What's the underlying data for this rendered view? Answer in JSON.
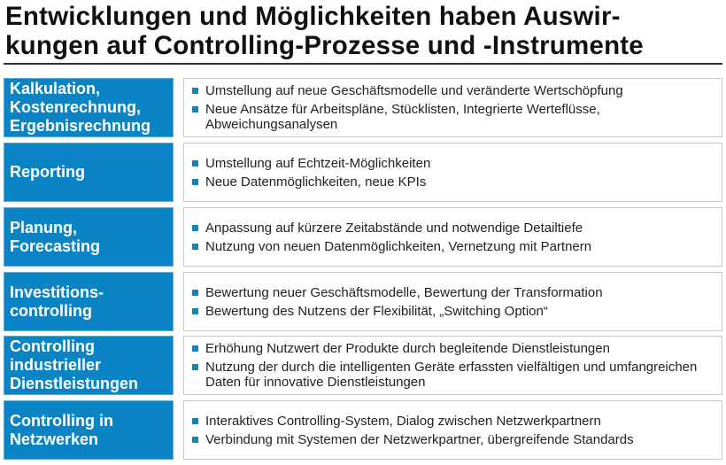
{
  "title": "Entwicklungen und Möglichkeiten haben Auswir-\nkungen auf Controlling-Prozesse und -Instrumente",
  "title_lines": [
    "Entwicklungen und Möglichkeiten haben Auswir-",
    "kungen auf Controlling-Prozesse und -Instrumente"
  ],
  "colors": {
    "accent": "#0a84c4"
  },
  "rows": [
    {
      "label": "Kalkulation, Kostenrechnung, Ergebnisrechnung",
      "bullets": [
        "Umstellung auf neue Geschäftsmodelle und veränderte Wertschöpfung",
        "Neue Ansätze für Arbeitspläne, Stücklisten, Integrierte Werteflüsse, Abweichungsanalysen"
      ]
    },
    {
      "label": "Reporting",
      "bullets": [
        "Umstellung auf Echtzeit-Möglichkeiten",
        "Neue Datenmöglichkeiten, neue KPIs"
      ]
    },
    {
      "label": "Planung, Forecasting",
      "bullets": [
        "Anpassung auf kürzere Zeitabstände und notwendige Detailtiefe",
        "Nutzung von neuen Datenmöglichkeiten, Vernetzung mit Partnern"
      ]
    },
    {
      "label": "Investitions-controlling",
      "bullets": [
        "Bewertung neuer Geschäftsmodelle, Bewertung der Transformation",
        "Bewertung des Nutzens der Flexibilität, „Switching Option“"
      ]
    },
    {
      "label": "Controlling industrieller Dienstleistungen",
      "bullets": [
        "Erhöhung Nutzwert der Produkte durch begleitende Dienstleistungen",
        "Nutzung der durch die intelligenten Geräte erfassten vielfältigen und umfangreichen Daten für innovative Dienstleistungen"
      ]
    },
    {
      "label": "Controlling in Netzwerken",
      "bullets": [
        "Interaktives Controlling-System, Dialog zwischen Netzwerkpartnern",
        "Verbindung mit Systemen der Netzwerkpartner, übergreifende Standards"
      ]
    }
  ]
}
